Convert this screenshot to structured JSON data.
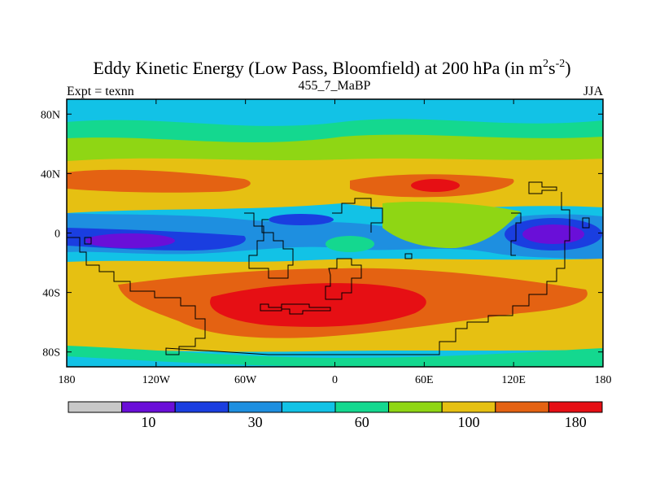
{
  "chart_data": {
    "type": "heatmap",
    "title": "Eddy Kinetic Energy (Low Pass, Bloomfield) at 200 hPa (in m",
    "title_units_sup1": "2",
    "title_units_s": "s",
    "title_units_sup2": "-2",
    "title_close": ")",
    "subtitle": "455_7_MaBP",
    "left_label": "Expt = texnn",
    "right_label": "JJA",
    "x_range": [
      -180,
      180
    ],
    "y_range": [
      -90,
      90
    ],
    "x_ticks": [
      {
        "value": -180,
        "label": "180"
      },
      {
        "value": -120,
        "label": "120W"
      },
      {
        "value": -60,
        "label": "60W"
      },
      {
        "value": 0,
        "label": "0"
      },
      {
        "value": 60,
        "label": "60E"
      },
      {
        "value": 120,
        "label": "120E"
      },
      {
        "value": 180,
        "label": "180"
      }
    ],
    "y_ticks": [
      {
        "value": 80,
        "label": "80N"
      },
      {
        "value": 40,
        "label": "40N"
      },
      {
        "value": 0,
        "label": "0"
      },
      {
        "value": -40,
        "label": "40S"
      },
      {
        "value": -80,
        "label": "80S"
      }
    ],
    "colorbar": {
      "colors": [
        "#c8c8c8",
        "#6a0fd8",
        "#1a3ee0",
        "#1e8fe0",
        "#12c2e6",
        "#14d88f",
        "#8fd614",
        "#e6c012",
        "#e46212",
        "#e60f14"
      ],
      "levels": [
        0,
        10,
        20,
        30,
        45,
        60,
        80,
        100,
        140,
        180,
        240
      ],
      "labels": [
        {
          "after_box": 1,
          "text": "10"
        },
        {
          "after_box": 3,
          "text": "30"
        },
        {
          "after_box": 5,
          "text": "60"
        },
        {
          "after_box": 7,
          "text": "100"
        },
        {
          "after_box": 9,
          "text": "180"
        }
      ]
    },
    "field_description_values": {
      "background_value": 55,
      "bands": [
        {
          "lat": 85,
          "value": 55
        },
        {
          "lat": 72,
          "value": 70
        },
        {
          "lat": 58,
          "value": 85
        },
        {
          "lat": 45,
          "value": 110
        },
        {
          "lat": 34,
          "value": 150
        },
        {
          "lat": 20,
          "value": 110
        },
        {
          "lat": 8,
          "value": 50
        },
        {
          "lat": 0,
          "value": 25
        },
        {
          "lat": -10,
          "value": 60
        },
        {
          "lat": -22,
          "value": 110
        },
        {
          "lat": -40,
          "value": 160
        },
        {
          "lat": -55,
          "value": 180
        },
        {
          "lat": -68,
          "value": 130
        },
        {
          "lat": -80,
          "value": 55
        },
        {
          "lat": -90,
          "value": 40
        }
      ]
    }
  }
}
